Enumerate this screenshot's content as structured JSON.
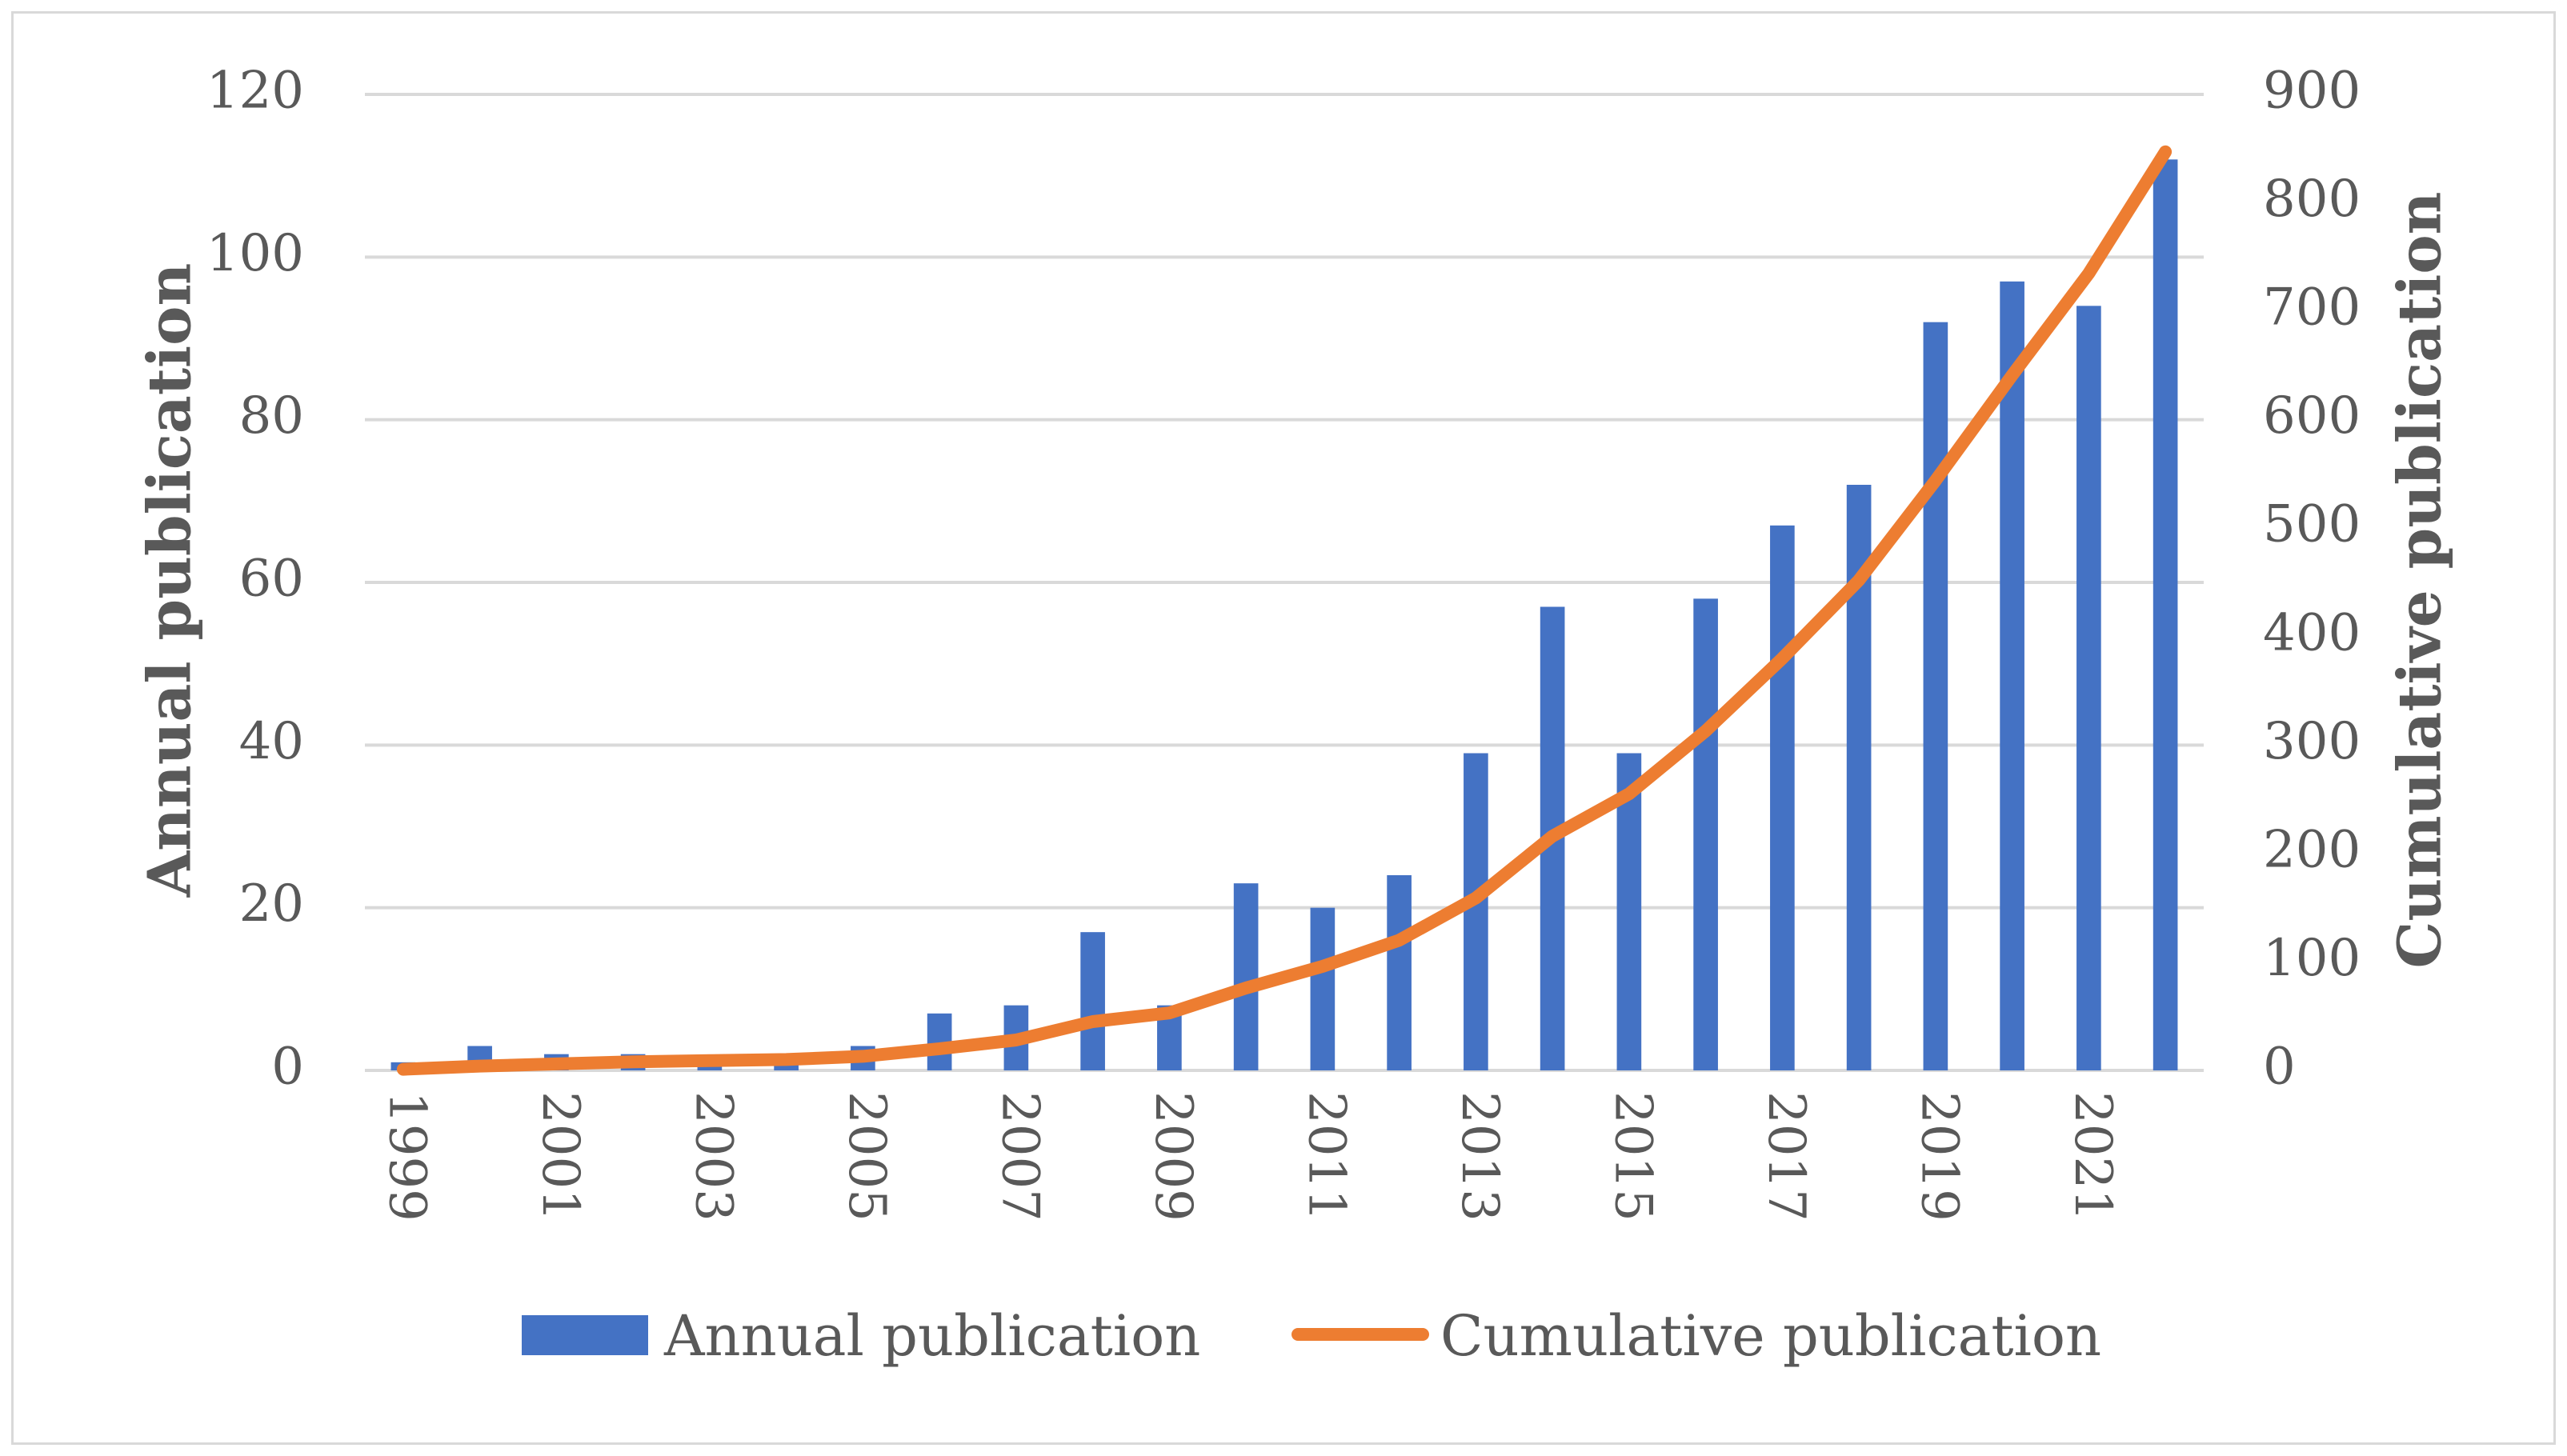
{
  "chart_data": {
    "type": "bar",
    "categories": [
      "1999",
      "2000",
      "2001",
      "2002",
      "2003",
      "2004",
      "2005",
      "2006",
      "2007",
      "2008",
      "2009",
      "2010",
      "2011",
      "2012",
      "2013",
      "2014",
      "2015",
      "2016",
      "2017",
      "2018",
      "2019",
      "2020",
      "2021",
      "2022"
    ],
    "tick_labels": [
      "1999",
      "2001",
      "2003",
      "2005",
      "2007",
      "2009",
      "2011",
      "2013",
      "2015",
      "2017",
      "2019",
      "2021"
    ],
    "series": [
      {
        "name": "Annual publication",
        "type": "bar",
        "axis": "left",
        "color": "#4472c4",
        "values": [
          1,
          3,
          2,
          2,
          1,
          1,
          3,
          7,
          8,
          17,
          8,
          23,
          20,
          24,
          39,
          57,
          39,
          58,
          67,
          72,
          92,
          97,
          94,
          112
        ]
      },
      {
        "name": "Cumulative publication",
        "type": "line",
        "axis": "right",
        "color": "#ed7d31",
        "values": [
          1,
          4,
          6,
          8,
          9,
          10,
          13,
          20,
          28,
          45,
          53,
          76,
          96,
          120,
          159,
          216,
          255,
          313,
          380,
          452,
          544,
          641,
          735,
          847
        ]
      }
    ],
    "ylabel": "Annual publication",
    "y2label": "Cumulative publication",
    "ylim": [
      0,
      120
    ],
    "yticks": [
      0,
      20,
      40,
      60,
      80,
      100,
      120
    ],
    "y2lim": [
      0,
      900
    ],
    "y2ticks": [
      0,
      100,
      200,
      300,
      400,
      500,
      600,
      700,
      800,
      900
    ],
    "grid": true,
    "legend": "bottom"
  },
  "legend": {
    "bar_label": "Annual publication",
    "line_label": "Cumulative publication"
  }
}
